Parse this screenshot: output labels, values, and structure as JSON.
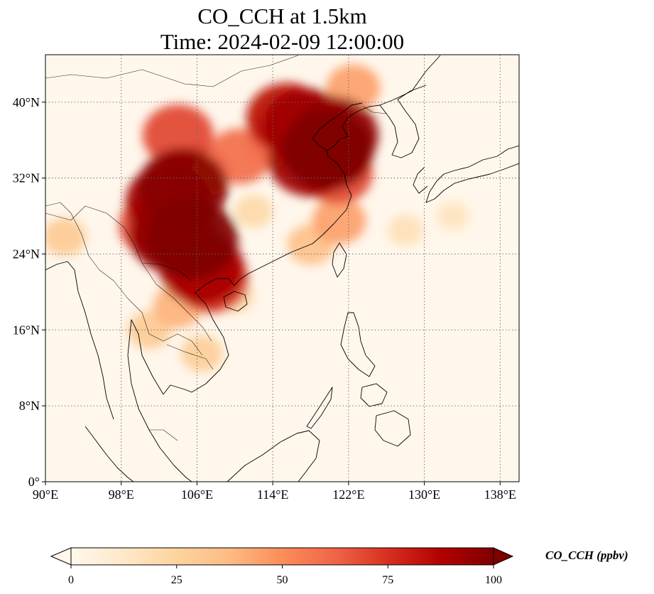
{
  "map": {
    "title": "CO_CCH at 1.5km",
    "subtitle": "Time: 2024-02-09 12:00:00",
    "extent": {
      "lon": [
        90,
        140
      ],
      "lat": [
        0,
        45
      ]
    },
    "lon_ticks": [
      {
        "value": 90,
        "label": "90°E"
      },
      {
        "value": 98,
        "label": "98°E"
      },
      {
        "value": 106,
        "label": "106°E"
      },
      {
        "value": 114,
        "label": "114°E"
      },
      {
        "value": 122,
        "label": "122°E"
      },
      {
        "value": 130,
        "label": "130°E"
      },
      {
        "value": 138,
        "label": "138°E"
      }
    ],
    "lat_ticks": [
      {
        "value": 0,
        "label": "0°"
      },
      {
        "value": 8,
        "label": "8°N"
      },
      {
        "value": 16,
        "label": "16°N"
      },
      {
        "value": 24,
        "label": "24°N"
      },
      {
        "value": 32,
        "label": "32°N"
      },
      {
        "value": 40,
        "label": "40°N"
      }
    ],
    "gridlines": true,
    "colormap": "OrRd",
    "colorbar": {
      "label": "CO_CCH (ppbv)",
      "ticks": [
        0,
        25,
        50,
        75,
        100
      ],
      "min": 0,
      "max": 100,
      "extend": "both",
      "colors": [
        "#fff7ec",
        "#fee8c8",
        "#fdd49e",
        "#fdbb84",
        "#fc8d59",
        "#ef6548",
        "#d7301f",
        "#b30000",
        "#7f0000"
      ]
    },
    "plumes": [
      {
        "lon": 105.5,
        "lat": 25.5,
        "value": 100
      },
      {
        "lon": 103.5,
        "lat": 26.0,
        "value": 95
      },
      {
        "lon": 104.5,
        "lat": 31.0,
        "value": 98
      },
      {
        "lon": 103.0,
        "lat": 29.5,
        "value": 92
      },
      {
        "lon": 106.5,
        "lat": 22.5,
        "value": 90
      },
      {
        "lon": 107.5,
        "lat": 21.2,
        "value": 75
      },
      {
        "lon": 101.5,
        "lat": 27.0,
        "value": 70
      },
      {
        "lon": 106.0,
        "lat": 32.5,
        "value": 60
      },
      {
        "lon": 119.8,
        "lat": 35.0,
        "value": 100
      },
      {
        "lon": 117.5,
        "lat": 37.5,
        "value": 92
      },
      {
        "lon": 115.5,
        "lat": 38.3,
        "value": 85
      },
      {
        "lon": 118.0,
        "lat": 34.0,
        "value": 92
      },
      {
        "lon": 120.5,
        "lat": 36.5,
        "value": 95
      },
      {
        "lon": 120.8,
        "lat": 32.5,
        "value": 70
      },
      {
        "lon": 114.5,
        "lat": 36.0,
        "value": 55
      },
      {
        "lon": 104.0,
        "lat": 36.5,
        "value": 70
      },
      {
        "lon": 110.5,
        "lat": 34.3,
        "value": 60
      },
      {
        "lon": 122.5,
        "lat": 41.5,
        "value": 45
      },
      {
        "lon": 121.0,
        "lat": 27.5,
        "value": 45
      },
      {
        "lon": 118.0,
        "lat": 25.0,
        "value": 35
      },
      {
        "lon": 104.0,
        "lat": 18.5,
        "value": 40
      },
      {
        "lon": 101.0,
        "lat": 16.0,
        "value": 30
      },
      {
        "lon": 106.5,
        "lat": 13.5,
        "value": 28
      },
      {
        "lon": 92.0,
        "lat": 25.8,
        "value": 30
      },
      {
        "lon": 128.0,
        "lat": 26.5,
        "value": 18
      },
      {
        "lon": 133.0,
        "lat": 28.0,
        "value": 15
      },
      {
        "lon": 112.0,
        "lat": 28.5,
        "value": 22
      },
      {
        "lon": 110.0,
        "lat": 19.5,
        "value": 22
      }
    ]
  }
}
